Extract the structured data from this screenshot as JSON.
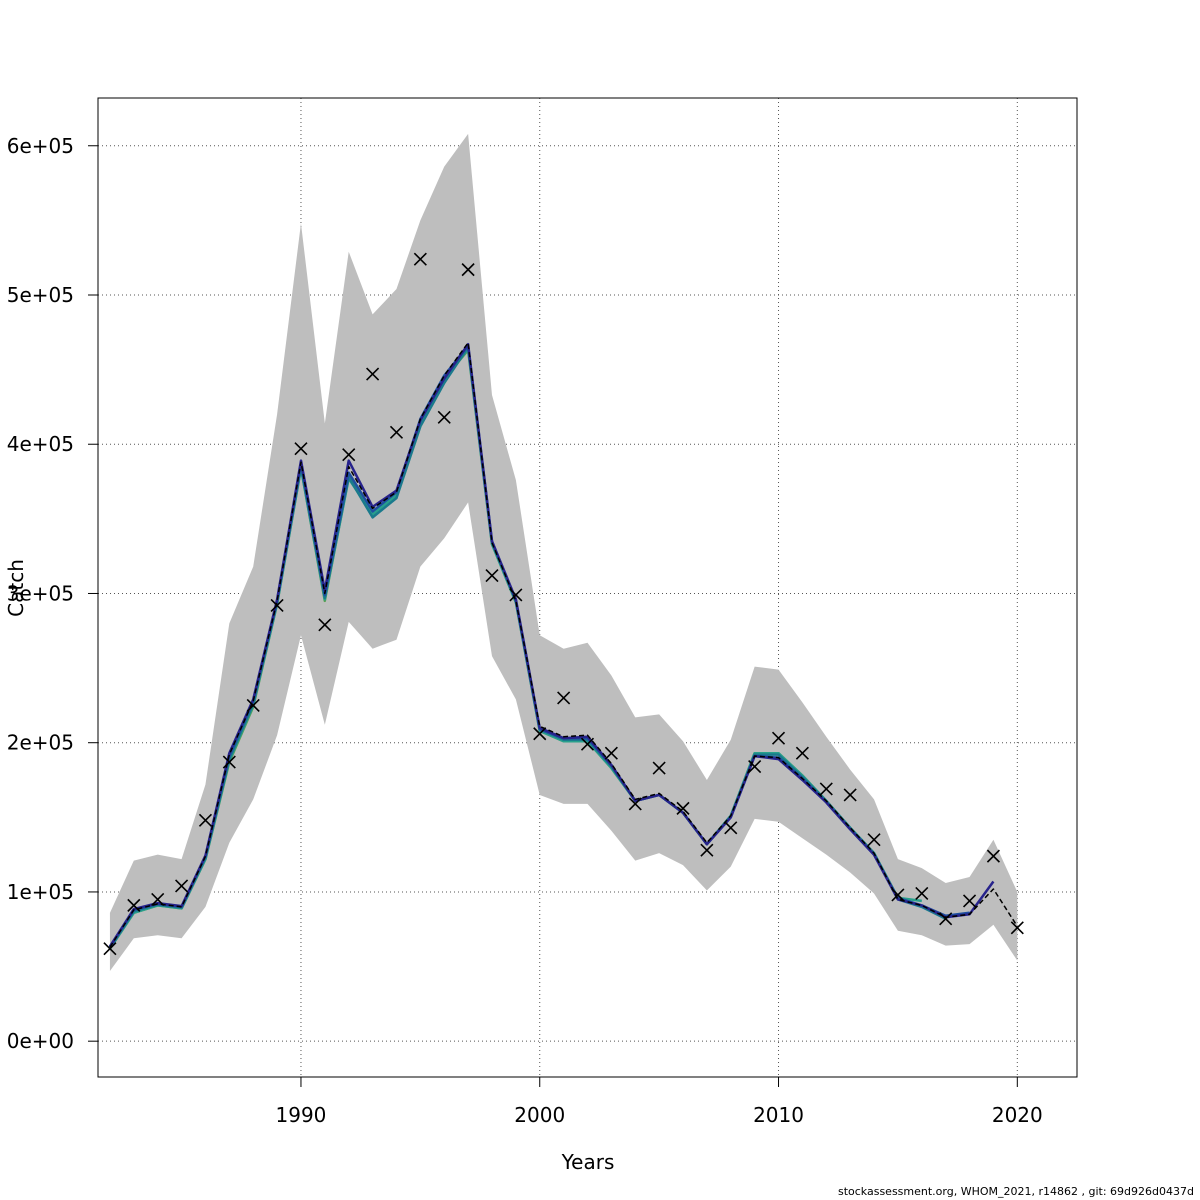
{
  "chart_data": {
    "type": "line",
    "xlabel": "Years",
    "ylabel": "Catch",
    "xlim": [
      1981.5,
      2022.5
    ],
    "ylim": [
      -24000,
      632000
    ],
    "x_ticks": [
      1990,
      2000,
      2010,
      2020
    ],
    "y_ticks": [
      0,
      100000,
      200000,
      300000,
      400000,
      500000,
      600000
    ],
    "y_tick_labels": [
      "0e+00",
      "1e+05",
      "2e+05",
      "3e+05",
      "4e+05",
      "5e+05",
      "6e+05"
    ],
    "grid": true,
    "colors": {
      "band": "#bebebe",
      "points": "#000000",
      "main": "#000000",
      "retro": [
        "#27238c",
        "#1e4fa0",
        "#1a7a8c",
        "#28a08c",
        "#5aa050",
        "#8c9a2a"
      ]
    },
    "x": [
      1982,
      1983,
      1984,
      1985,
      1986,
      1987,
      1988,
      1989,
      1990,
      1991,
      1992,
      1993,
      1994,
      1995,
      1996,
      1997,
      1998,
      1999,
      2000,
      2001,
      2002,
      2003,
      2004,
      2005,
      2006,
      2007,
      2008,
      2009,
      2010,
      2011,
      2012,
      2013,
      2014,
      2015,
      2016,
      2017,
      2018,
      2019,
      2020
    ],
    "ci_upper": [
      86000,
      121000,
      125000,
      122000,
      172000,
      280000,
      318000,
      420000,
      548000,
      414000,
      529000,
      487000,
      504000,
      550000,
      586000,
      608000,
      433000,
      376000,
      272000,
      263000,
      267000,
      245000,
      217000,
      219000,
      201000,
      175000,
      202000,
      251000,
      249000,
      227000,
      204000,
      182000,
      162000,
      122000,
      116000,
      106000,
      110000,
      135000,
      100000
    ],
    "ci_lower": [
      47000,
      69000,
      71000,
      69000,
      90000,
      133000,
      162000,
      205000,
      272000,
      212000,
      281000,
      263000,
      269000,
      318000,
      337000,
      361000,
      258000,
      229000,
      165000,
      159000,
      159000,
      141000,
      121000,
      126000,
      118000,
      101000,
      117000,
      149000,
      147000,
      136000,
      125000,
      113000,
      99000,
      74000,
      71000,
      64000,
      65000,
      78000,
      54000
    ],
    "observed": [
      62000,
      91000,
      95000,
      104000,
      148000,
      187000,
      225000,
      292000,
      397000,
      279000,
      393000,
      447000,
      408000,
      524000,
      418000,
      517000,
      312000,
      299000,
      206000,
      230000,
      199000,
      193000,
      159000,
      183000,
      156000,
      128000,
      143000,
      184000,
      203000,
      193000,
      169000,
      165000,
      135000,
      98000,
      99000,
      82000,
      94000,
      124000,
      76000
    ],
    "series": [
      {
        "name": "",
        "x": [
          1982,
          1983,
          1984,
          1985,
          1986,
          1987,
          1988,
          1989,
          1990,
          1991,
          1992,
          1993,
          1994,
          1995,
          1996,
          1997,
          1998,
          1999,
          2000,
          2001,
          2002,
          2003,
          2004,
          2005,
          2006,
          2007,
          2008,
          2009,
          2010,
          2011,
          2012,
          2013,
          2014,
          2015,
          2016,
          2017,
          2018,
          2019,
          2020
        ],
        "values": [
          63000,
          88000,
          92000,
          90000,
          124000,
          192000,
          228000,
          295000,
          388000,
          300000,
          385000,
          357000,
          368000,
          417000,
          446000,
          468000,
          334000,
          295000,
          211000,
          204000,
          205000,
          186000,
          162000,
          166000,
          154000,
          133000,
          151000,
          191000,
          190000,
          176000,
          161000,
          143000,
          126000,
          95000,
          91000,
          83000,
          85000,
          102000,
          77000
        ]
      },
      {
        "name": "",
        "x": [
          1982,
          1983,
          1984,
          1985,
          1986,
          1987,
          1988,
          1989,
          1990,
          1991,
          1992,
          1993,
          1994,
          1995,
          1996,
          1997,
          1998,
          1999,
          2000,
          2001,
          2002,
          2003,
          2004,
          2005,
          2006,
          2007,
          2008,
          2009,
          2010,
          2011,
          2012,
          2013,
          2014,
          2015,
          2016,
          2017,
          2018,
          2019
        ],
        "values": [
          63500,
          88500,
          92500,
          90500,
          124500,
          193000,
          229000,
          296000,
          389000,
          302000,
          389000,
          358000,
          369000,
          416000,
          444000,
          467000,
          335000,
          296000,
          210000,
          203000,
          204000,
          185000,
          161000,
          165000,
          153000,
          132000,
          150000,
          191000,
          189000,
          175000,
          160000,
          142000,
          125000,
          95000,
          91000,
          83000,
          85000,
          107000
        ]
      },
      {
        "name": "",
        "x": [
          1982,
          1983,
          1984,
          1985,
          1986,
          1987,
          1988,
          1989,
          1990,
          1991,
          1992,
          1993,
          1994,
          1995,
          1996,
          1997,
          1998,
          1999,
          2000,
          2001,
          2002,
          2003,
          2004,
          2005,
          2006,
          2007,
          2008,
          2009,
          2010,
          2011,
          2012,
          2013,
          2014,
          2015,
          2016,
          2017,
          2018
        ],
        "values": [
          63000,
          88000,
          92000,
          90000,
          124000,
          191000,
          228000,
          295000,
          387000,
          299000,
          381000,
          355000,
          368000,
          417000,
          446000,
          466000,
          335000,
          295000,
          209000,
          203000,
          203000,
          185000,
          161000,
          165000,
          153000,
          132000,
          150000,
          191000,
          190000,
          176000,
          160000,
          142000,
          125000,
          96000,
          91000,
          84000,
          86000
        ]
      },
      {
        "name": "",
        "x": [
          1982,
          1983,
          1984,
          1985,
          1986,
          1987,
          1988,
          1989,
          1990,
          1991,
          1992,
          1993,
          1994,
          1995,
          1996,
          1997,
          1998,
          1999,
          2000,
          2001,
          2002,
          2003,
          2004,
          2005,
          2006,
          2007,
          2008,
          2009,
          2010,
          2011,
          2012,
          2013,
          2014,
          2015,
          2016,
          2017
        ],
        "values": [
          62500,
          87000,
          91500,
          89500,
          123000,
          189000,
          226000,
          294000,
          385000,
          297000,
          378000,
          351000,
          364000,
          412000,
          441000,
          465000,
          334000,
          295000,
          209000,
          202000,
          202000,
          184000,
          161000,
          165000,
          153000,
          132000,
          151000,
          192000,
          192000,
          177000,
          161000,
          143000,
          126000,
          95000,
          90000,
          82000
        ]
      },
      {
        "name": "",
        "x": [
          1982,
          1983,
          1984,
          1985,
          1986,
          1987,
          1988,
          1989,
          1990,
          1991,
          1992,
          1993,
          1994,
          1995,
          1996,
          1997,
          1998,
          1999,
          2000,
          2001,
          2002,
          2003,
          2004,
          2005,
          2006,
          2007,
          2008,
          2009,
          2010,
          2011,
          2012,
          2013,
          2014,
          2015,
          2016
        ],
        "values": [
          62000,
          86000,
          91000,
          89000,
          122000,
          188000,
          225000,
          293000,
          384000,
          296000,
          377000,
          353000,
          366000,
          414000,
          443000,
          464000,
          333000,
          294000,
          208000,
          201000,
          201000,
          183000,
          161000,
          165000,
          153000,
          132000,
          151000,
          193000,
          193000,
          178000,
          161000,
          143000,
          126000,
          96000,
          94000
        ]
      },
      {
        "name": "",
        "x": [
          1982,
          1983,
          1984,
          1985,
          1986,
          1987,
          1988,
          1989,
          1990,
          1991,
          1992,
          1993,
          1994,
          1995,
          1996,
          1997,
          1998,
          1999,
          2000,
          2001,
          2002,
          2003,
          2004,
          2005,
          2006,
          2007,
          2008,
          2009,
          2010,
          2011,
          2012,
          2013,
          2014,
          2015
        ],
        "values": [
          62000,
          86000,
          91000,
          89000,
          122000,
          187000,
          224000,
          293000,
          384000,
          295000,
          378000,
          354000,
          367000,
          415000,
          444000,
          463000,
          333000,
          294000,
          208000,
          201000,
          201000,
          183000,
          161000,
          165000,
          153000,
          132000,
          151000,
          193000,
          193000,
          178000,
          161000,
          143000,
          126000,
          96000
        ]
      }
    ]
  },
  "footer": {
    "text": "stockassessment.org, WHOM_2021, r14862 , git: 69d926d0437d"
  }
}
